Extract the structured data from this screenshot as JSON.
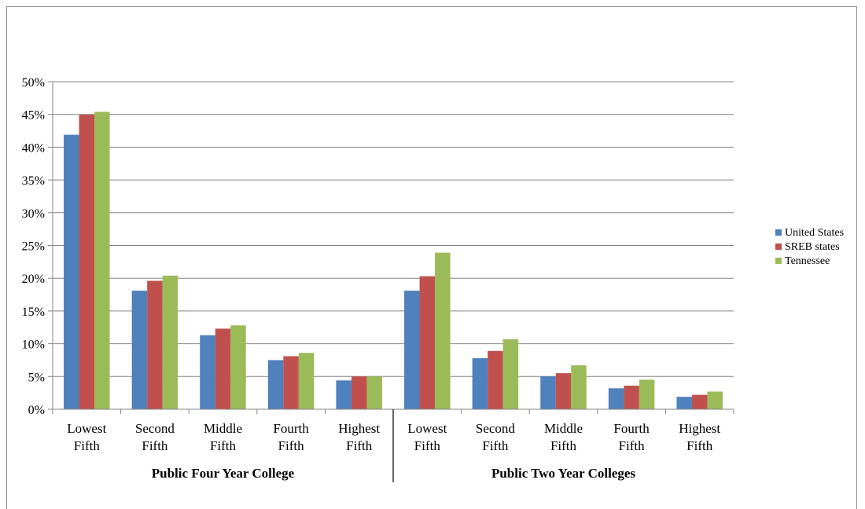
{
  "chart_data": {
    "type": "bar",
    "title": "",
    "xlabel": "",
    "ylabel": "",
    "ylim": [
      0,
      50
    ],
    "y_ticks": [
      "0%",
      "5%",
      "10%",
      "15%",
      "20%",
      "25%",
      "30%",
      "35%",
      "40%",
      "45%",
      "50%"
    ],
    "grid": true,
    "legend_position": "right",
    "groups": [
      {
        "label": "Public Four Year College",
        "categories": [
          [
            "Lowest",
            "Fifth"
          ],
          [
            "Second",
            "Fifth"
          ],
          [
            "Middle",
            "Fifth"
          ],
          [
            "Fourth",
            "Fifth"
          ],
          [
            "Highest",
            "Fifth"
          ]
        ]
      },
      {
        "label": "Public Two Year Colleges",
        "categories": [
          [
            "Lowest",
            "Fifth"
          ],
          [
            "Second",
            "Fifth"
          ],
          [
            "Middle",
            "Fifth"
          ],
          [
            "Fourth",
            "Fifth"
          ],
          [
            "Highest",
            "Fifth"
          ]
        ]
      }
    ],
    "series": [
      {
        "name": "United States",
        "color": "#4f81bd",
        "values": [
          41.9,
          18.1,
          11.3,
          7.5,
          4.4,
          18.1,
          7.8,
          5.0,
          3.2,
          1.9
        ]
      },
      {
        "name": "SREB states",
        "color": "#c0504d",
        "values": [
          45.0,
          19.6,
          12.3,
          8.1,
          5.0,
          20.3,
          8.9,
          5.5,
          3.6,
          2.2
        ]
      },
      {
        "name": "Tennessee",
        "color": "#9bbb59",
        "values": [
          45.4,
          20.4,
          12.8,
          8.6,
          5.0,
          23.9,
          10.7,
          6.7,
          4.5,
          2.7
        ]
      }
    ]
  }
}
